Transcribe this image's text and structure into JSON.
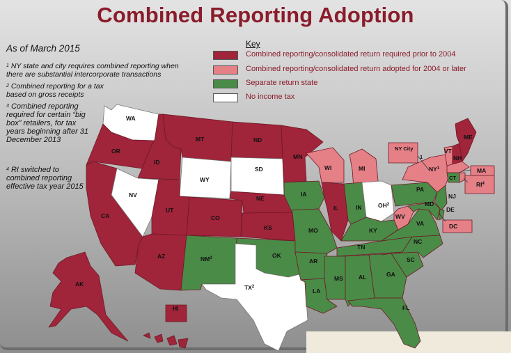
{
  "title": "Combined Reporting Adoption",
  "as_of": "As of March 2015",
  "footnotes": [
    {
      "num": "1",
      "text": "NY state and city requires combined reporting when there are substantial intercorporate transactions"
    },
    {
      "num": "2",
      "text": "Combined reporting for a tax based on gross receipts"
    },
    {
      "num": "3",
      "text": "Combined reporting required for certain “big box” retailers, for tax years beginning after 31 December 2013"
    },
    {
      "num": "4",
      "text": "RI switched to combined reporting effective tax year 2015"
    }
  ],
  "key": {
    "title": "Key",
    "items": [
      {
        "label": "Combined reporting/consolidated return required prior to 2004",
        "color": "#a0243a"
      },
      {
        "label": "Combined reporting/consolidated return adopted for 2004 or later",
        "color": "#e58087"
      },
      {
        "label": "Separate return state",
        "color": "#4a8b47"
      },
      {
        "label": "No income tax",
        "color": "#ffffff"
      }
    ]
  },
  "colors": {
    "title": "#8a1c2b",
    "prior_2004": "#a0243a",
    "adopted_2004_later": "#e58087",
    "separate": "#4a8b47",
    "no_tax": "#ffffff"
  },
  "states": {
    "WA": "WA",
    "OR": "OR",
    "CA": "CA",
    "ID": "ID",
    "NV": "NV",
    "MT": "MT",
    "WY": "WY",
    "UT": "UT",
    "AZ": "AZ",
    "CO": "CO",
    "NM": "NM",
    "NM_sup": "3",
    "ND": "ND",
    "SD": "SD",
    "NE": "NE",
    "KS": "KS",
    "OK": "OK",
    "TX": "TX",
    "TX_sup": "2",
    "MN": "MN",
    "IA": "IA",
    "MO": "MO",
    "AR": "AR",
    "LA": "LA",
    "WI": "WI",
    "IL": "IL",
    "MI": "MI",
    "IN": "IN",
    "OH": "OH",
    "OH_sup": "2",
    "KY": "KY",
    "TN": "TN",
    "MS": "MS",
    "AL": "AL",
    "GA": "GA",
    "FL": "FL",
    "SC": "SC",
    "NC": "NC",
    "VA": "VA",
    "WV": "WV",
    "PA": "PA",
    "NY": "NY",
    "NY_sup": "1",
    "NYC": "NY City",
    "NYC_sup": "1",
    "VT": "VT",
    "NH": "NH",
    "ME": "ME",
    "MA": "MA",
    "RI": "RI",
    "RI_sup": "4",
    "CT": "CT",
    "NJ": "NJ",
    "DE": "DE",
    "MD": "MD",
    "DC": "DC",
    "AK": "AK",
    "HI": "HI"
  }
}
